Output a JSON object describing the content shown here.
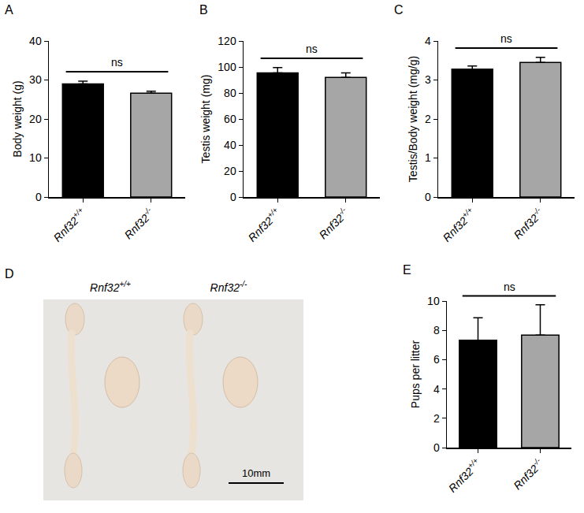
{
  "chart_data": [
    {
      "panel": "A",
      "type": "bar",
      "categories": [
        "Rnf32+/+",
        "Rnf32-/-"
      ],
      "values": [
        29.0,
        26.6
      ],
      "errors": [
        0.7,
        0.5
      ],
      "colors": [
        "#000000",
        "#a6a6a6"
      ],
      "y_label": "Body weight (g)",
      "ylim": [
        0,
        40
      ],
      "yticks": [
        0,
        10,
        20,
        30,
        40
      ],
      "annotations": [
        "ns"
      ]
    },
    {
      "panel": "B",
      "type": "bar",
      "categories": [
        "Rnf32+/+",
        "Rnf32-/-"
      ],
      "values": [
        95.5,
        92.0
      ],
      "errors": [
        4.0,
        3.5
      ],
      "colors": [
        "#000000",
        "#a6a6a6"
      ],
      "y_label": "Testis weight (mg)",
      "ylim": [
        0,
        120
      ],
      "yticks": [
        0,
        20,
        40,
        60,
        80,
        100,
        120
      ],
      "annotations": [
        "ns"
      ]
    },
    {
      "panel": "C",
      "type": "bar",
      "categories": [
        "Rnf32+/+",
        "Rnf32-/-"
      ],
      "values": [
        3.28,
        3.45
      ],
      "errors": [
        0.08,
        0.13
      ],
      "colors": [
        "#000000",
        "#a6a6a6"
      ],
      "y_label": "Testis/Body weight (mg/g)",
      "ylim": [
        0,
        4
      ],
      "yticks": [
        0,
        1,
        2,
        3,
        4
      ],
      "annotations": [
        "ns"
      ]
    },
    {
      "panel": "E",
      "type": "bar",
      "categories": [
        "Rnf32+/+",
        "Rnf32-/-"
      ],
      "values": [
        7.33,
        7.67
      ],
      "errors": [
        1.53,
        2.08
      ],
      "colors": [
        "#000000",
        "#a6a6a6"
      ],
      "y_label": "Pups per litter",
      "ylim": [
        0,
        10
      ],
      "yticks": [
        0,
        2,
        4,
        6,
        8,
        10
      ],
      "annotations": [
        "ns"
      ]
    }
  ],
  "image": {
    "panel": "D",
    "labels": [
      "Rnf32+/+",
      "Rnf32-/-"
    ],
    "scale_bar": "10mm"
  }
}
